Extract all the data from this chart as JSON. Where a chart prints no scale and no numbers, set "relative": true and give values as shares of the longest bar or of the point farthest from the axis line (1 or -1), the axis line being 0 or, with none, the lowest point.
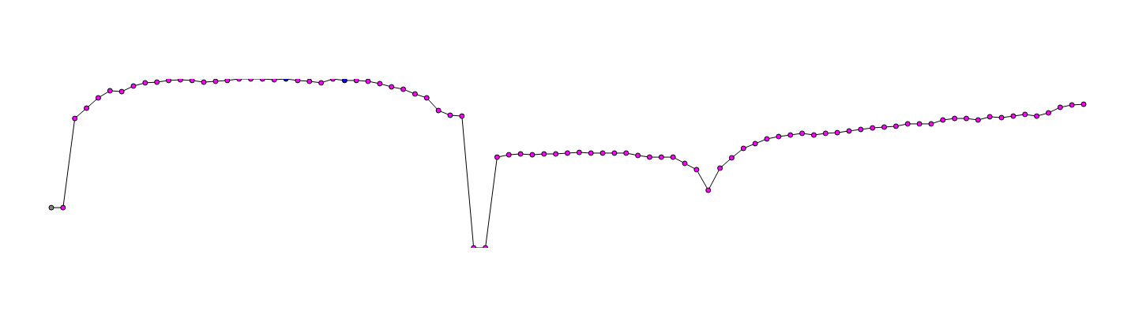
{
  "chart_data": {
    "type": "line",
    "relative": true,
    "legend": false,
    "marker": "circle",
    "categories": [
      null,
      null,
      null,
      null,
      null,
      null,
      null,
      null,
      null,
      null,
      null,
      null,
      null,
      null,
      null,
      null,
      null,
      null,
      null,
      null,
      null,
      null,
      null,
      null,
      null,
      null,
      null,
      null,
      null,
      null,
      null,
      null,
      null,
      null,
      null,
      null,
      null,
      null,
      null,
      null,
      null,
      null,
      null,
      null,
      null,
      null,
      null,
      null,
      null,
      null,
      null,
      null,
      null,
      null,
      null,
      null,
      null,
      null,
      null,
      null,
      null,
      null,
      null,
      null,
      null,
      null,
      null,
      null,
      null,
      null,
      null,
      null,
      null,
      null,
      null,
      null,
      null,
      null,
      null,
      null,
      null,
      null,
      null,
      null,
      null,
      null,
      null,
      null,
      null
    ],
    "series": [
      {
        "color": "#000000",
        "values": [
          0.238,
          0.238,
          0.766,
          0.827,
          0.888,
          0.93,
          0.925,
          0.958,
          0.977,
          0.981,
          0.991,
          0.995,
          0.991,
          0.981,
          0.986,
          0.991,
          1,
          1,
          1,
          0.995,
          1,
          0.991,
          0.986,
          0.977,
          1,
          0.991,
          0.991,
          0.986,
          0.972,
          0.953,
          0.939,
          0.911,
          0.888,
          0.813,
          0.785,
          0.78,
          0,
          0,
          0.537,
          0.551,
          0.556,
          0.551,
          0.556,
          0.556,
          0.561,
          0.565,
          0.561,
          0.561,
          0.561,
          0.561,
          0.547,
          0.537,
          0.537,
          0.537,
          0.5,
          0.463,
          0.341,
          0.472,
          0.533,
          0.589,
          0.617,
          0.645,
          0.659,
          0.668,
          0.678,
          0.668,
          0.678,
          0.682,
          0.692,
          0.701,
          0.71,
          0.715,
          0.72,
          0.734,
          0.734,
          0.734,
          0.757,
          0.766,
          0.766,
          0.757,
          0.776,
          0.771,
          0.78,
          0.79,
          0.78,
          0.799,
          0.832,
          0.846,
          0.85
        ],
        "colors": [
          "#808080",
          "#ff00ff",
          "#ff00ff",
          "#ff00ff",
          "#ff00ff",
          "#ff00ff",
          "#ff00ff",
          "#ff00ff",
          "#ff00ff",
          "#ff00ff",
          "#ff00ff",
          "#ff00ff",
          "#ff00ff",
          "#ff00ff",
          "#ff00ff",
          "#ff00ff",
          "#ff00ff",
          "#ff00ff",
          "#ff00ff",
          "#ff00ff",
          "#0000ff",
          "#ff00ff",
          "#ff00ff",
          "#ff00ff",
          "#ff00ff",
          "#0000ff",
          "#ff00ff",
          "#ff00ff",
          "#ff00ff",
          "#ff00ff",
          "#ff00ff",
          "#ff00ff",
          "#ff00ff",
          "#ff00ff",
          "#ff00ff",
          "#ff00ff",
          "#ff00ff",
          "#ff00ff",
          "#ff00ff",
          "#ff00ff",
          "#ff00ff",
          "#ff00ff",
          "#ff00ff",
          "#ff00ff",
          "#ff00ff",
          "#ff00ff",
          "#ff00ff",
          "#ff00ff",
          "#ff00ff",
          "#ff00ff",
          "#ff00ff",
          "#ff00ff",
          "#ff00ff",
          "#ff00ff",
          "#ff00ff",
          "#ff00ff",
          "#ff00ff",
          "#ff00ff",
          "#ff00ff",
          "#ff00ff",
          "#ff00ff",
          "#ff00ff",
          "#ff00ff",
          "#ff00ff",
          "#ff00ff",
          "#ff00ff",
          "#ff00ff",
          "#ff00ff",
          "#ff00ff",
          "#ff00ff",
          "#ff00ff",
          "#ff00ff",
          "#ff00ff",
          "#ff00ff",
          "#ff00ff",
          "#ff00ff",
          "#ff00ff",
          "#ff00ff",
          "#ff00ff",
          "#ff00ff",
          "#ff00ff",
          "#ff00ff",
          "#ff00ff",
          "#ff00ff",
          "#ff00ff",
          "#ff00ff",
          "#ff00ff",
          "#ff00ff",
          "#ff00ff"
        ]
      }
    ]
  }
}
